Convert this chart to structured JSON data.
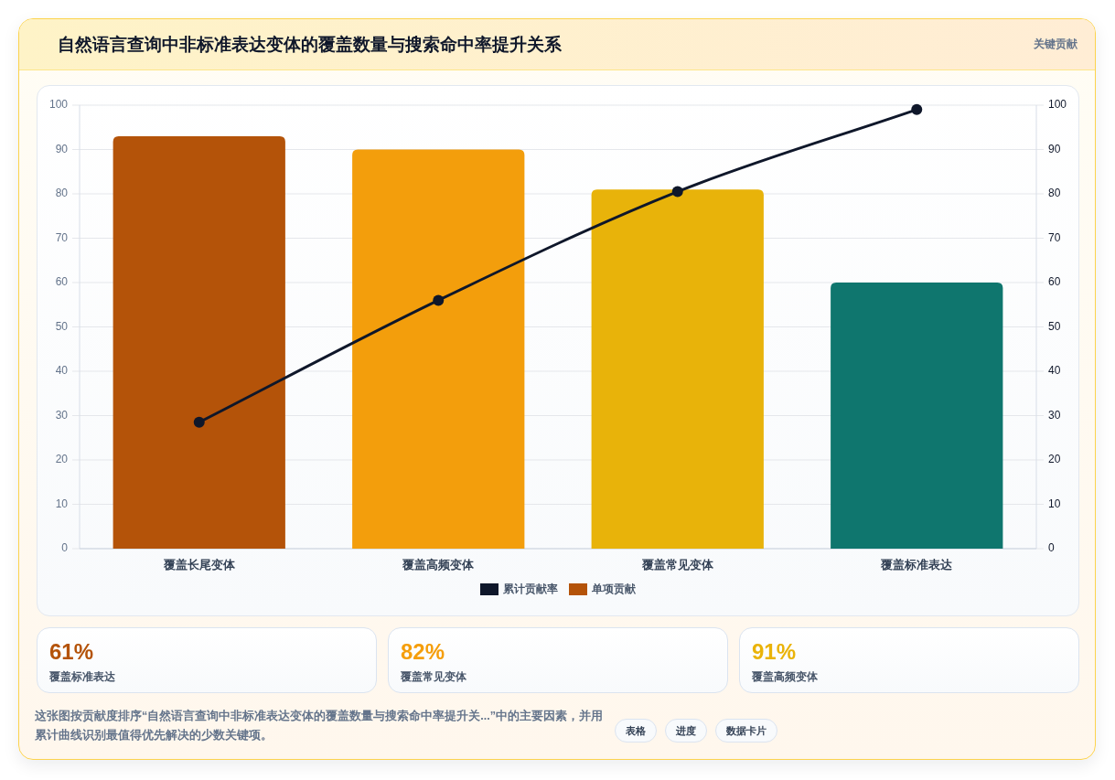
{
  "chart_data": [
    {
      "type": "bar",
      "title": "自然语言查询中非标准表达变体的覆盖数量与搜索命中率提升关系",
      "categories": [
        "覆盖长尾变体",
        "覆盖高频变体",
        "覆盖常见变体",
        "覆盖标准表达"
      ],
      "series": [
        {
          "name": "累计贡献率",
          "type": "line",
          "axis": "y2",
          "color": "#0f172a",
          "values": [
            28.5,
            56,
            80.5,
            99
          ]
        },
        {
          "name": "单项贡献",
          "type": "bar",
          "colors": [
            "#b45309",
            "#f39e0c",
            "#e8b30a",
            "#0f766e"
          ],
          "values": [
            93,
            90,
            81,
            60
          ]
        }
      ],
      "ylim": [
        0,
        100
      ],
      "yticks": [
        0,
        10,
        20,
        30,
        40,
        50,
        60,
        70,
        80,
        90,
        100
      ],
      "y2lim": [
        0,
        100
      ],
      "y2ticks": [
        0,
        10,
        20,
        30,
        40,
        50,
        60,
        70,
        80,
        90,
        100
      ],
      "grid": "y",
      "legend": "bottom",
      "marker": "circle",
      "annotations": [
        "关键贡献",
        "这张图按贡献度排序“自然语言查询中非标准表达变体的覆盖数量与搜索命中率提升关...”中的主要因素，并用累计曲线识别最值得优先解决的少数关键项。",
        "表格",
        "进度",
        "数据卡片"
      ]
    },
    {
      "type": "other",
      "annotations": [
        "61%",
        "覆盖标准表达",
        "82%",
        "覆盖常见变体",
        "91%",
        "覆盖高频变体"
      ],
      "colors": [
        "#b45309",
        "#f59e0b",
        "#eab308"
      ]
    }
  ]
}
